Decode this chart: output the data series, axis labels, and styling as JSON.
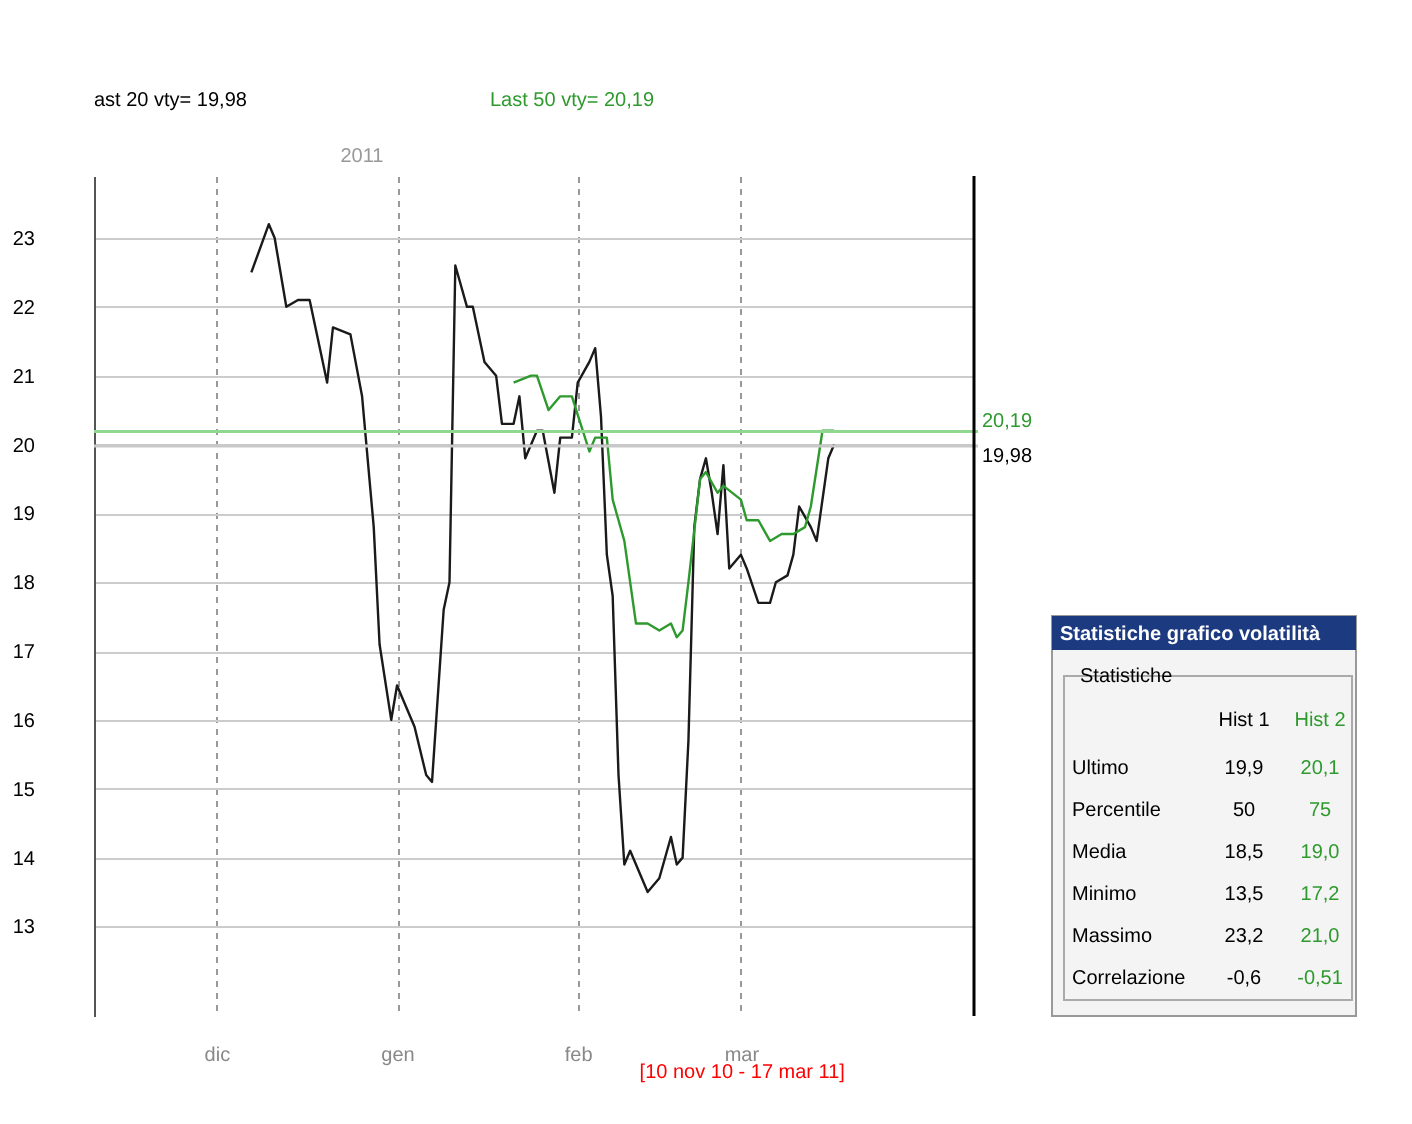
{
  "chart_data": [
    {
      "type": "line",
      "series": [
        {
          "color": "#1a1a1a",
          "x": [
            "2010-12-07",
            "2010-12-10",
            "2010-12-11",
            "2010-12-13",
            "2010-12-15",
            "2010-12-17",
            "2010-12-20",
            "2010-12-21",
            "2010-12-24",
            "2010-12-26",
            "2010-12-28",
            "2010-12-29",
            "2010-12-31",
            "2011-01-01",
            "2011-01-04",
            "2011-01-06",
            "2011-01-07",
            "2011-01-09",
            "2011-01-10",
            "2011-01-11",
            "2011-01-13",
            "2011-01-14",
            "2011-01-16",
            "2011-01-18",
            "2011-01-19",
            "2011-01-21",
            "2011-01-22",
            "2011-01-23",
            "2011-01-25",
            "2011-01-26",
            "2011-01-28",
            "2011-01-29",
            "2011-01-31",
            "2011-02-01",
            "2011-02-03",
            "2011-02-04",
            "2011-02-05",
            "2011-02-06",
            "2011-02-07",
            "2011-02-08",
            "2011-02-09",
            "2011-02-10",
            "2011-02-13",
            "2011-02-15",
            "2011-02-17",
            "2011-02-18",
            "2011-02-19",
            "2011-02-20",
            "2011-02-21",
            "2011-02-22",
            "2011-02-23",
            "2011-02-24",
            "2011-02-25",
            "2011-02-26",
            "2011-02-27",
            "2011-03-01",
            "2011-03-02",
            "2011-03-04",
            "2011-03-06",
            "2011-03-07",
            "2011-03-09",
            "2011-03-10",
            "2011-03-11",
            "2011-03-13",
            "2011-03-14",
            "2011-03-16",
            "2011-03-17"
          ],
          "values": [
            22.5,
            23.2,
            23.0,
            22.0,
            22.1,
            22.1,
            20.9,
            21.7,
            21.6,
            20.7,
            18.8,
            17.1,
            16.0,
            16.5,
            15.9,
            15.2,
            15.1,
            17.6,
            18.0,
            22.6,
            22.0,
            22.0,
            21.2,
            21.0,
            20.3,
            20.3,
            20.7,
            19.8,
            20.2,
            20.2,
            19.3,
            20.1,
            20.1,
            20.9,
            21.2,
            21.4,
            20.4,
            18.4,
            17.8,
            15.2,
            13.9,
            14.1,
            13.5,
            13.7,
            14.3,
            13.9,
            14.0,
            15.7,
            18.8,
            19.5,
            19.8,
            19.3,
            18.7,
            19.7,
            18.2,
            18.4,
            18.2,
            17.7,
            17.7,
            18.0,
            18.1,
            18.4,
            19.1,
            18.8,
            18.6,
            19.8,
            20.0
          ]
        },
        {
          "color": "#2e9a2e",
          "x": [
            "2011-01-21",
            "2011-01-24",
            "2011-01-25",
            "2011-01-27",
            "2011-01-29",
            "2011-01-31",
            "2011-02-03",
            "2011-02-04",
            "2011-02-06",
            "2011-02-07",
            "2011-02-08",
            "2011-02-09",
            "2011-02-11",
            "2011-02-13",
            "2011-02-15",
            "2011-02-17",
            "2011-02-18",
            "2011-02-19",
            "2011-02-20",
            "2011-02-22",
            "2011-02-23",
            "2011-02-25",
            "2011-02-26",
            "2011-03-01",
            "2011-03-02",
            "2011-03-04",
            "2011-03-06",
            "2011-03-08",
            "2011-03-10",
            "2011-03-12",
            "2011-03-13",
            "2011-03-15",
            "2011-03-17"
          ],
          "values": [
            20.9,
            21.0,
            21.0,
            20.5,
            20.7,
            20.7,
            19.9,
            20.1,
            20.1,
            19.2,
            18.9,
            18.6,
            17.4,
            17.4,
            17.3,
            17.4,
            17.2,
            17.3,
            18.0,
            19.5,
            19.6,
            19.3,
            19.4,
            19.2,
            18.9,
            18.9,
            18.6,
            18.7,
            18.7,
            18.8,
            19.1,
            20.2,
            20.2
          ]
        }
      ],
      "xlim": [
        "2010-11-10",
        "2011-04-10"
      ],
      "xticks": [
        {
          "value": "2010-12-01",
          "label": "dic"
        },
        {
          "value": "2011-01-01",
          "label": "gen"
        },
        {
          "value": "2011-02-01",
          "label": "feb"
        },
        {
          "value": "2011-03-01",
          "label": "mar"
        }
      ],
      "ylim": [
        11.7,
        23.9
      ],
      "yticks": [
        13,
        14,
        15,
        16,
        17,
        18,
        19,
        20,
        21,
        22,
        23
      ],
      "grid": true,
      "ref_lines": [
        {
          "axis": "y",
          "value": 20.19,
          "label": "20,19",
          "color": "#90d890"
        },
        {
          "axis": "y",
          "value": 19.98,
          "label": "19,98",
          "color": "#c8c8c8"
        }
      ],
      "annotations": [
        "ast 20 vty= 19,98",
        "Last 50 vty= 20,19",
        "2011",
        "[10 nov 10 - 17 mar 11]"
      ]
    },
    {
      "type": "other",
      "title": "Statistiche grafico volatilità",
      "subtitle": "Statistiche",
      "colors": [
        "#000000",
        "#2e9a2e"
      ],
      "annotations": [
        "Hist 1",
        "Hist 2",
        "Ultimo",
        "19,9",
        "20,1",
        "Percentile",
        "50",
        "75",
        "Media",
        "18,5",
        "19,0",
        "Minimo",
        "13,5",
        "17,2",
        "Massimo",
        "23,2",
        "21,0",
        "Correlazione",
        "-0,6",
        "-0,51"
      ]
    }
  ]
}
